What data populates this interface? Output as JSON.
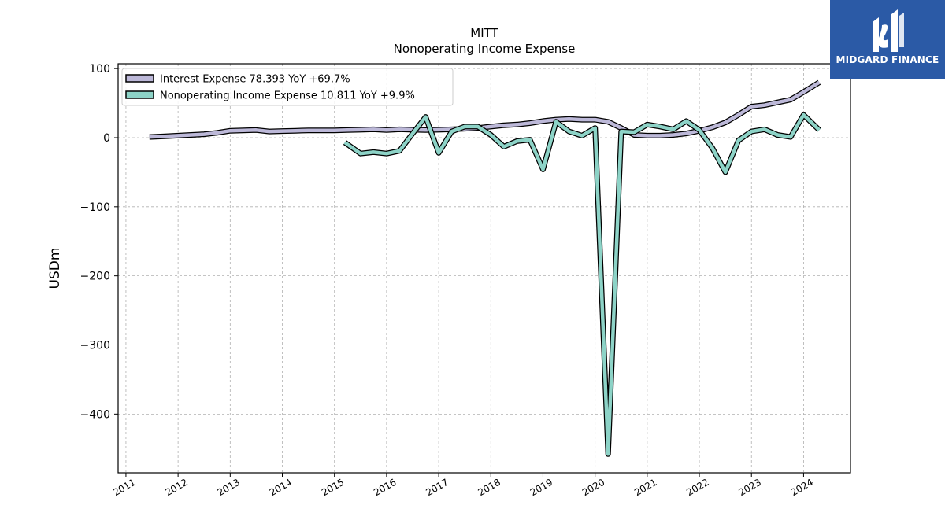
{
  "logo": {
    "text": "MIDGARD FINANCE",
    "color": "#2b5aa6"
  },
  "chart_data": {
    "type": "line",
    "title": "MITT",
    "subtitle": "Nonoperating Income Expense",
    "xlabel": "",
    "ylabel": "USDm",
    "xlim": [
      2010.85,
      2024.9
    ],
    "ylim": [
      -485,
      107
    ],
    "grid": true,
    "legend_position": "top-left",
    "x_ticks": [
      2011,
      2012,
      2013,
      2014,
      2015,
      2016,
      2017,
      2018,
      2019,
      2020,
      2021,
      2022,
      2023,
      2024
    ],
    "y_ticks": [
      100,
      0,
      -100,
      -200,
      -300,
      -400
    ],
    "y_tick_labels": [
      "100",
      "0",
      "−100",
      "−200",
      "−300",
      "−400"
    ],
    "series": [
      {
        "name": "Interest Expense",
        "legend_label": "Interest Expense  78.393 YoY +69.7%",
        "color": "#bcb8d8",
        "x": [
          2011.45,
          2011.75,
          2012.0,
          2012.25,
          2012.5,
          2012.75,
          2013.0,
          2013.25,
          2013.5,
          2013.75,
          2014.0,
          2014.25,
          2014.5,
          2014.75,
          2015.0,
          2015.25,
          2015.5,
          2015.75,
          2016.0,
          2016.25,
          2016.5,
          2016.75,
          2017.0,
          2017.25,
          2017.5,
          2017.75,
          2018.0,
          2018.25,
          2018.5,
          2018.75,
          2019.0,
          2019.25,
          2019.5,
          2019.75,
          2020.0,
          2020.25,
          2020.5,
          2020.75,
          2021.0,
          2021.25,
          2021.5,
          2021.75,
          2022.0,
          2022.25,
          2022.5,
          2022.75,
          2023.0,
          2023.25,
          2023.5,
          2023.75,
          2024.0,
          2024.3
        ],
        "values": [
          1,
          2,
          3,
          4,
          5,
          7,
          10,
          10.5,
          11,
          9,
          9.5,
          10,
          10.5,
          10.5,
          10.5,
          11,
          11.5,
          12,
          11,
          12,
          11.5,
          11,
          11.5,
          12,
          13,
          14,
          16,
          18,
          19,
          21,
          24,
          26,
          27,
          26,
          26,
          23,
          14,
          4,
          3,
          3,
          4,
          6,
          10,
          15,
          22,
          33,
          45,
          47,
          51,
          55,
          66,
          80
        ]
      },
      {
        "name": "Nonoperating Income Expense",
        "legend_label": "Nonoperating Income Expense  10.811 YoY +9.9%",
        "color": "#8dd3c7",
        "x": [
          2015.2,
          2015.5,
          2015.75,
          2016.0,
          2016.25,
          2016.5,
          2016.75,
          2017.0,
          2017.25,
          2017.5,
          2017.75,
          2018.0,
          2018.25,
          2018.5,
          2018.75,
          2019.0,
          2019.25,
          2019.5,
          2019.75,
          2020.0,
          2020.25,
          2020.5,
          2020.75,
          2021.0,
          2021.25,
          2021.5,
          2021.75,
          2022.0,
          2022.25,
          2022.5,
          2022.75,
          2023.0,
          2023.25,
          2023.5,
          2023.75,
          2024.0,
          2024.3
        ],
        "values": [
          -7,
          -23,
          -21,
          -23,
          -19,
          6,
          30,
          -22,
          9,
          16,
          16,
          4,
          -13,
          -5,
          -3,
          -46,
          23,
          9,
          3,
          14,
          -458,
          9,
          8,
          19,
          16,
          12,
          24,
          11,
          -15,
          -50,
          -4,
          9,
          12,
          4,
          1,
          33,
          11
        ]
      }
    ]
  }
}
